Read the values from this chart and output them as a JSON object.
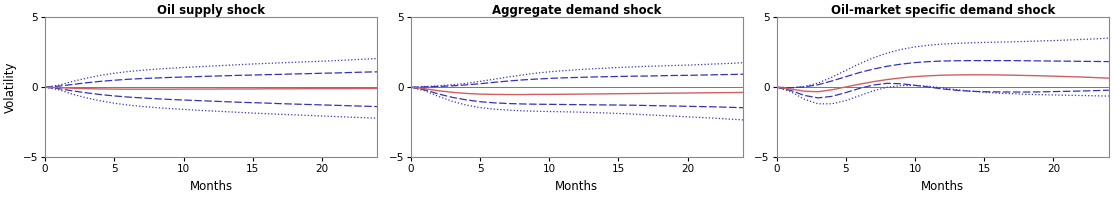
{
  "titles": [
    "Oil supply shock",
    "Aggregate demand shock",
    "Oil-market specific demand shock"
  ],
  "xlabel": "Months",
  "ylabel": "Volatility",
  "ylim": [
    -5,
    5
  ],
  "xlim": [
    0,
    24
  ],
  "xticks": [
    0,
    5,
    10,
    15,
    20
  ],
  "yticks": [
    -5,
    0,
    5
  ],
  "months": 25,
  "red_color": "#d06060",
  "blue_color": "#3333bb",
  "panels": [
    {
      "red_line": [
        0.0,
        -0.03,
        -0.07,
        -0.1,
        -0.12,
        -0.13,
        -0.14,
        -0.14,
        -0.14,
        -0.14,
        -0.13,
        -0.13,
        -0.13,
        -0.12,
        -0.12,
        -0.12,
        -0.11,
        -0.11,
        -0.11,
        -0.1,
        -0.1,
        -0.1,
        -0.1,
        -0.09,
        -0.09
      ],
      "blue_dash_upper": [
        0.0,
        0.08,
        0.2,
        0.32,
        0.42,
        0.5,
        0.57,
        0.62,
        0.66,
        0.7,
        0.73,
        0.76,
        0.79,
        0.82,
        0.85,
        0.87,
        0.9,
        0.92,
        0.95,
        0.97,
        1.0,
        1.02,
        1.05,
        1.08,
        1.1
      ],
      "blue_dash_lower": [
        0.0,
        -0.1,
        -0.26,
        -0.4,
        -0.52,
        -0.62,
        -0.7,
        -0.76,
        -0.82,
        -0.87,
        -0.91,
        -0.95,
        -0.99,
        -1.03,
        -1.07,
        -1.1,
        -1.13,
        -1.17,
        -1.2,
        -1.23,
        -1.26,
        -1.29,
        -1.32,
        -1.35,
        -1.38
      ],
      "blue_dot_upper": [
        0.0,
        0.15,
        0.42,
        0.65,
        0.85,
        1.0,
        1.12,
        1.21,
        1.29,
        1.35,
        1.41,
        1.46,
        1.51,
        1.56,
        1.61,
        1.66,
        1.7,
        1.74,
        1.78,
        1.82,
        1.86,
        1.9,
        1.95,
        2.0,
        2.05
      ],
      "blue_dot_lower": [
        0.0,
        -0.18,
        -0.5,
        -0.76,
        -0.97,
        -1.14,
        -1.27,
        -1.37,
        -1.45,
        -1.52,
        -1.58,
        -1.64,
        -1.69,
        -1.74,
        -1.79,
        -1.84,
        -1.89,
        -1.93,
        -1.97,
        -2.01,
        -2.05,
        -2.09,
        -2.13,
        -2.17,
        -2.21
      ]
    },
    {
      "red_line": [
        0.0,
        -0.1,
        -0.25,
        -0.36,
        -0.44,
        -0.49,
        -0.51,
        -0.52,
        -0.52,
        -0.51,
        -0.51,
        -0.5,
        -0.49,
        -0.48,
        -0.47,
        -0.46,
        -0.45,
        -0.44,
        -0.43,
        -0.42,
        -0.41,
        -0.4,
        -0.39,
        -0.38,
        -0.37
      ],
      "blue_dash_upper": [
        0.0,
        0.03,
        0.06,
        0.1,
        0.17,
        0.25,
        0.35,
        0.44,
        0.52,
        0.58,
        0.63,
        0.67,
        0.7,
        0.73,
        0.75,
        0.77,
        0.79,
        0.8,
        0.82,
        0.84,
        0.85,
        0.87,
        0.89,
        0.91,
        0.93
      ],
      "blue_dash_lower": [
        0.0,
        -0.18,
        -0.48,
        -0.72,
        -0.9,
        -1.03,
        -1.11,
        -1.16,
        -1.19,
        -1.21,
        -1.22,
        -1.23,
        -1.24,
        -1.25,
        -1.26,
        -1.27,
        -1.28,
        -1.3,
        -1.32,
        -1.34,
        -1.36,
        -1.38,
        -1.4,
        -1.43,
        -1.46
      ],
      "blue_dot_upper": [
        0.0,
        0.05,
        0.1,
        0.18,
        0.28,
        0.42,
        0.57,
        0.73,
        0.87,
        1.0,
        1.1,
        1.18,
        1.25,
        1.31,
        1.36,
        1.41,
        1.45,
        1.49,
        1.52,
        1.55,
        1.58,
        1.62,
        1.66,
        1.7,
        1.75
      ],
      "blue_dot_lower": [
        0.0,
        -0.25,
        -0.65,
        -1.0,
        -1.27,
        -1.45,
        -1.56,
        -1.63,
        -1.68,
        -1.71,
        -1.73,
        -1.75,
        -1.77,
        -1.8,
        -1.83,
        -1.87,
        -1.91,
        -1.96,
        -2.01,
        -2.06,
        -2.11,
        -2.16,
        -2.21,
        -2.27,
        -2.33
      ]
    },
    {
      "red_line": [
        0.0,
        -0.12,
        -0.28,
        -0.32,
        -0.18,
        0.02,
        0.22,
        0.4,
        0.55,
        0.67,
        0.76,
        0.82,
        0.86,
        0.88,
        0.89,
        0.89,
        0.88,
        0.86,
        0.84,
        0.82,
        0.79,
        0.76,
        0.73,
        0.69,
        0.65
      ],
      "blue_dash_upper": [
        0.0,
        -0.03,
        0.02,
        0.18,
        0.45,
        0.75,
        1.05,
        1.3,
        1.5,
        1.65,
        1.76,
        1.83,
        1.87,
        1.89,
        1.9,
        1.9,
        1.9,
        1.9,
        1.89,
        1.88,
        1.87,
        1.86,
        1.85,
        1.84,
        1.83
      ],
      "blue_dash_lower": [
        0.0,
        -0.22,
        -0.58,
        -0.76,
        -0.65,
        -0.38,
        -0.08,
        0.16,
        0.28,
        0.25,
        0.14,
        0.01,
        -0.12,
        -0.22,
        -0.28,
        -0.32,
        -0.33,
        -0.34,
        -0.34,
        -0.33,
        -0.31,
        -0.29,
        -0.27,
        -0.24,
        -0.21
      ],
      "blue_dot_upper": [
        0.0,
        -0.05,
        0.05,
        0.3,
        0.72,
        1.2,
        1.68,
        2.1,
        2.44,
        2.7,
        2.88,
        3.0,
        3.08,
        3.13,
        3.17,
        3.2,
        3.22,
        3.24,
        3.27,
        3.3,
        3.33,
        3.37,
        3.41,
        3.45,
        3.5
      ],
      "blue_dot_lower": [
        0.0,
        -0.3,
        -0.85,
        -1.18,
        -1.18,
        -0.95,
        -0.6,
        -0.25,
        0.0,
        0.12,
        0.13,
        0.07,
        -0.05,
        -0.17,
        -0.28,
        -0.36,
        -0.42,
        -0.46,
        -0.5,
        -0.53,
        -0.55,
        -0.57,
        -0.59,
        -0.61,
        -0.63
      ]
    }
  ]
}
